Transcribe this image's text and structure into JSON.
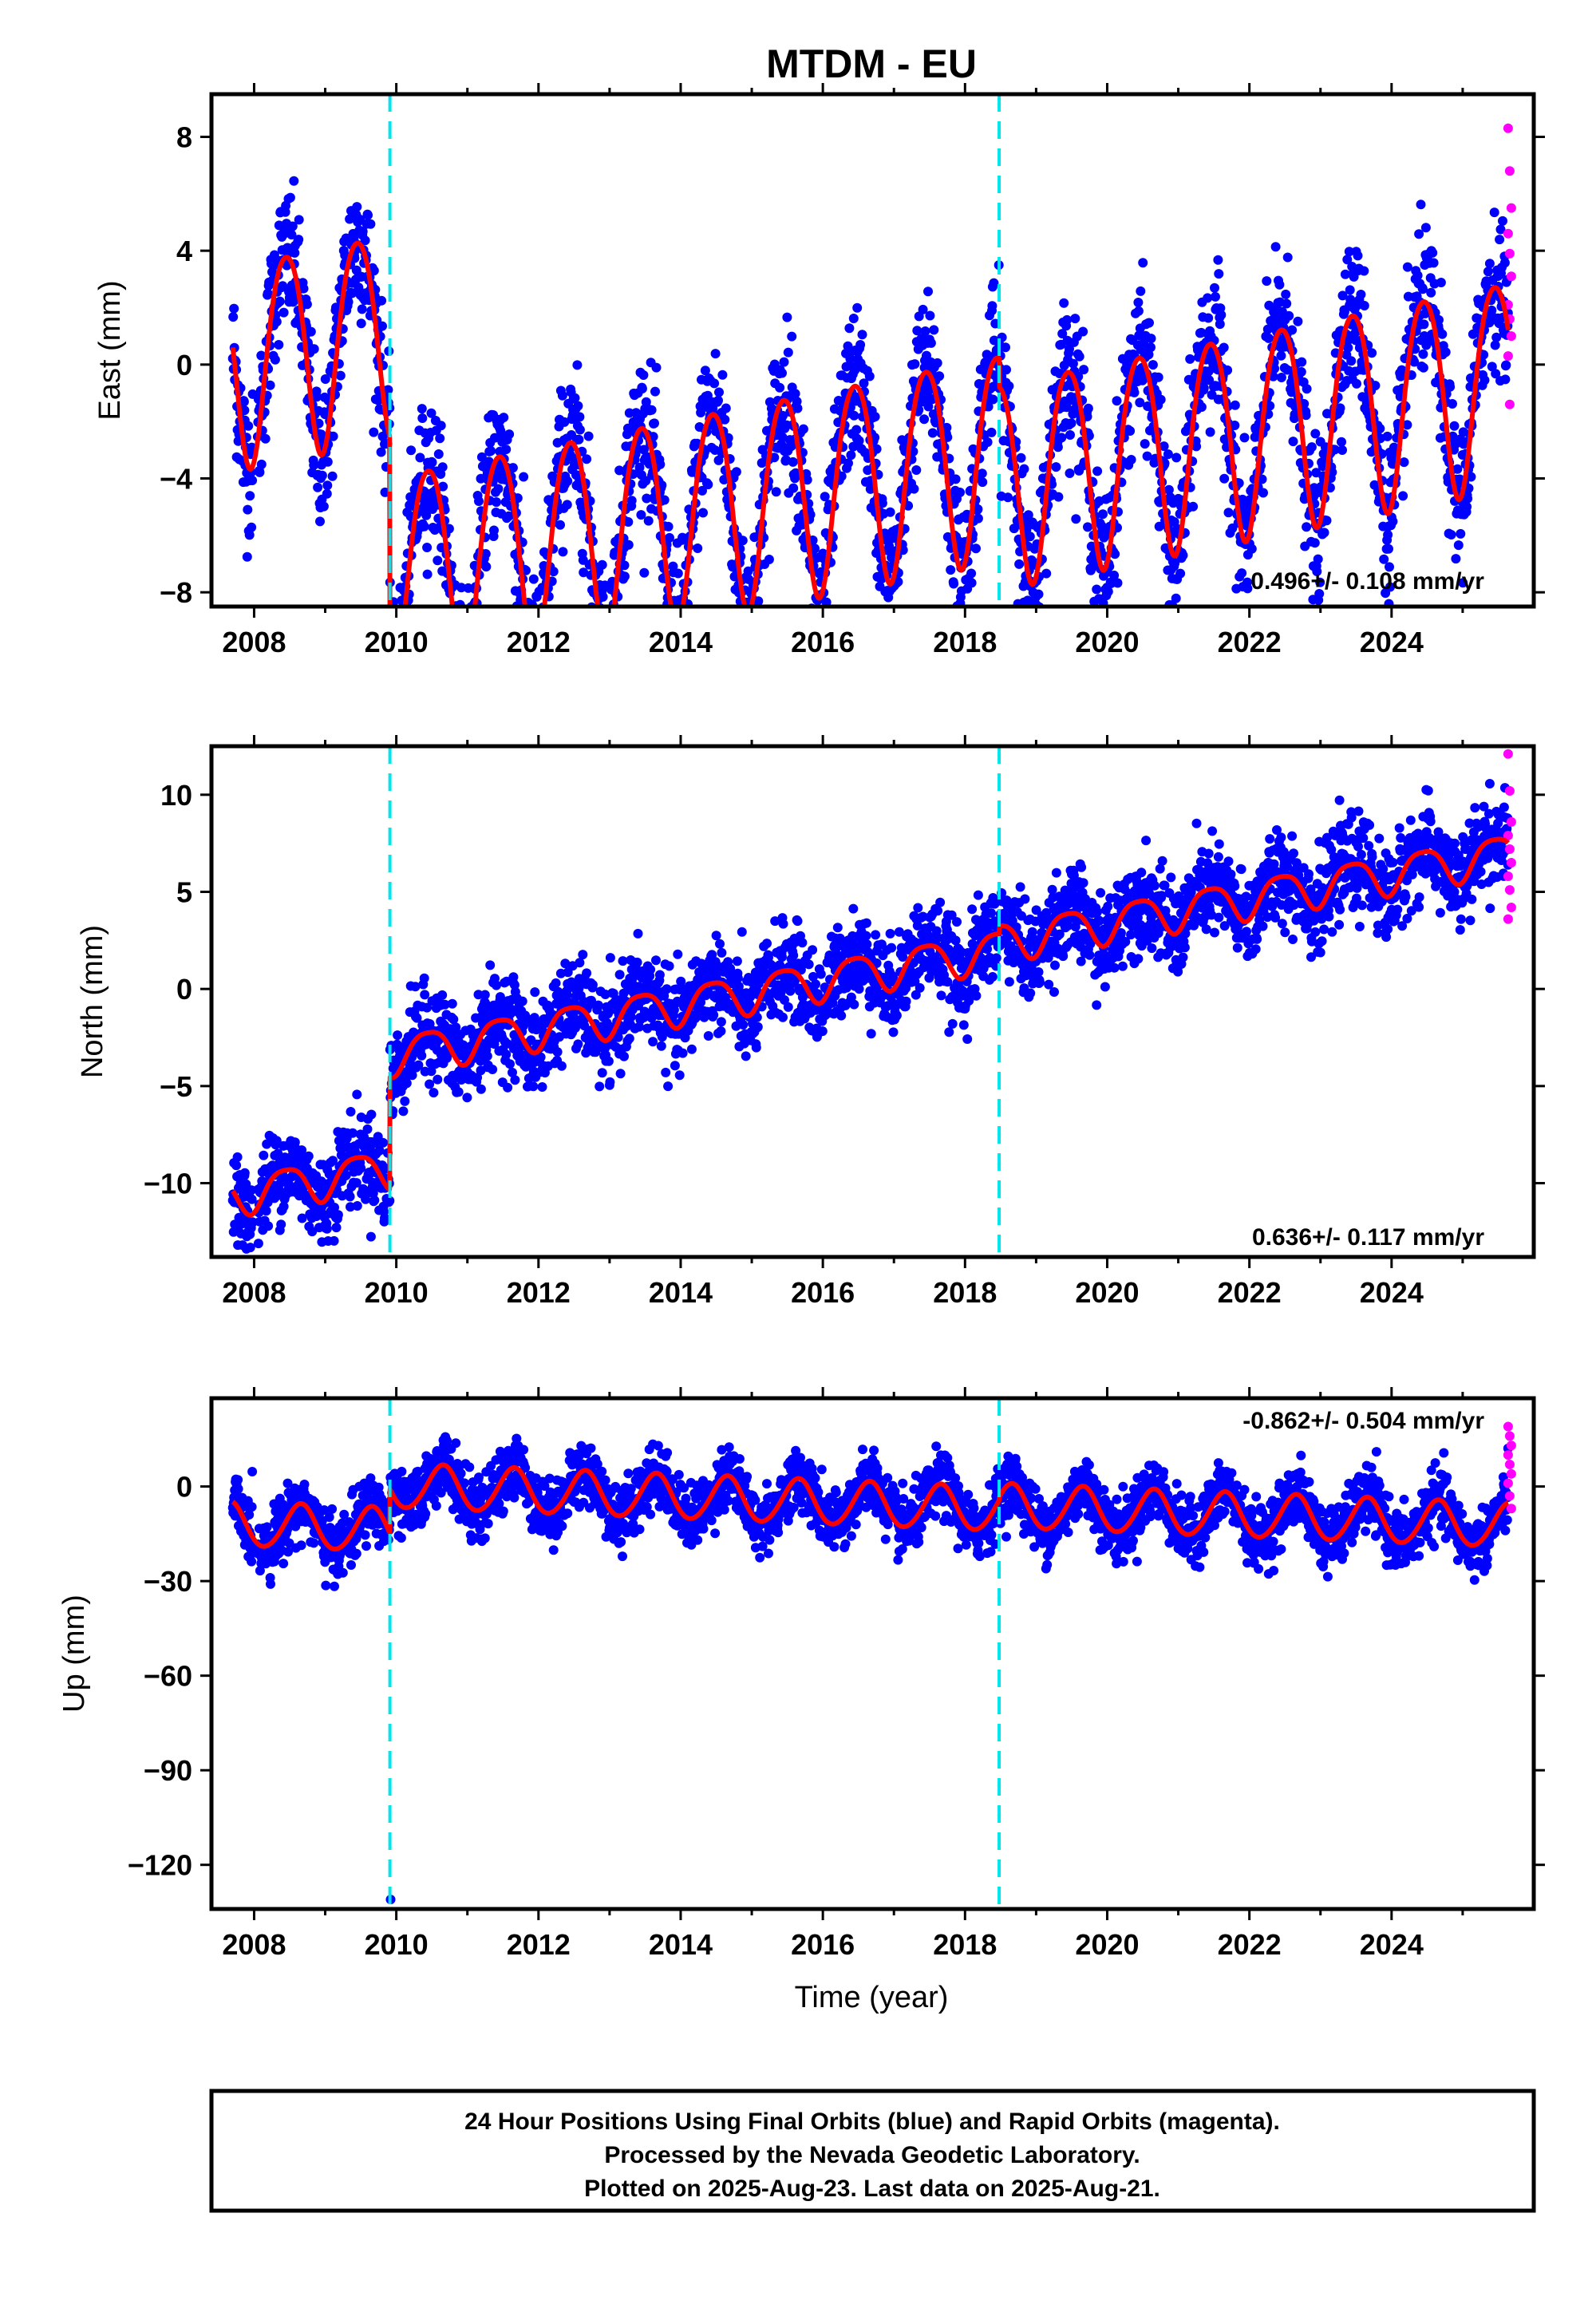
{
  "chart_data": {
    "title": "MTDM - EU",
    "type": "scatter",
    "xlabel": "Time (year)",
    "xlim": [
      2007.4,
      2026.0
    ],
    "x_ticks": [
      "2008",
      "2010",
      "2012",
      "2014",
      "2016",
      "2018",
      "2020",
      "2022",
      "2024"
    ],
    "x_tick_values": [
      2008,
      2010,
      2012,
      2014,
      2016,
      2018,
      2020,
      2022,
      2024
    ],
    "data_range": [
      2007.7,
      2025.64
    ],
    "events": [
      2009.91,
      2018.48
    ],
    "event_style": "cyan dashed vertical lines",
    "colors": {
      "final": "#0000ff",
      "rapid": "#ff00ff",
      "model": "#ff0000",
      "event": "#00e5ee"
    },
    "legend_text": [
      "24 Hour Positions Using Final Orbits (blue) and Rapid Orbits (magenta).",
      "Processed by the Nevada Geodetic Laboratory.",
      "Plotted on 2025-Aug-23. Last data on 2025-Aug-21."
    ],
    "panels": [
      {
        "id": "east",
        "ylabel": "East (mm)",
        "ylim": [
          -8.5,
          9.5
        ],
        "y_ticks": [
          "8",
          "4",
          "0",
          "−4",
          "−8"
        ],
        "y_tick_values": [
          8,
          4,
          0,
          -4,
          -8
        ],
        "rate": "0.496+/- 0.108 mm/yr",
        "model": {
          "t0": 2007.7,
          "base": 0.2,
          "trend": 0.496,
          "annual_amp": 3.6,
          "annual_phase_peak": 0.45,
          "semi_amp": 0.4,
          "offsets": [
            {
              "t": 2009.91,
              "dy": -8.5
            },
            {
              "t": 2018.48,
              "dy": -1.0
            }
          ],
          "noise": 1.25
        },
        "rapid_points": [
          8.3,
          6.8,
          5.5,
          4.6,
          3.9,
          3.1,
          2.1,
          1.6,
          1.0,
          0.3,
          -1.4
        ]
      },
      {
        "id": "north",
        "ylabel": "North (mm)",
        "ylim": [
          -13.8,
          12.5
        ],
        "y_ticks": [
          "10",
          "5",
          "0",
          "−5",
          "−10"
        ],
        "y_tick_values": [
          10,
          5,
          0,
          -5,
          -10
        ],
        "rate": "0.636+/- 0.117 mm/yr",
        "model": {
          "t0": 2007.7,
          "base": -10.6,
          "trend": 0.636,
          "annual_amp": 1.0,
          "annual_phase_peak": 0.45,
          "semi_amp": 0.2,
          "offsets": [
            {
              "t": 2009.91,
              "dy": 5.8
            },
            {
              "t": 2018.48,
              "dy": 0.4
            }
          ],
          "noise": 1.15
        },
        "rapid_points": [
          12.1,
          10.2,
          8.6,
          7.9,
          7.2,
          6.5,
          5.8,
          5.1,
          4.2,
          3.6
        ]
      },
      {
        "id": "up",
        "ylabel": "Up (mm)",
        "ylim": [
          -134,
          28
        ],
        "y_ticks": [
          "0",
          "−30",
          "−60",
          "−90",
          "−120"
        ],
        "y_tick_values": [
          0,
          -30,
          -60,
          -90,
          -120
        ],
        "rate": "-0.862+/- 0.504 mm/yr",
        "model": {
          "t0": 2007.7,
          "base": -12.0,
          "trend": -0.862,
          "annual_amp": 7.0,
          "annual_phase_peak": 0.65,
          "semi_amp": 0.5,
          "offsets": [
            {
              "t": 2009.91,
              "dy": 14.0
            },
            {
              "t": 2018.48,
              "dy": 1.0
            }
          ],
          "noise": 4.8
        },
        "rapid_points": [
          19,
          16,
          13,
          10,
          7,
          4,
          1,
          -3,
          -7
        ],
        "outliers": [
          {
            "x": 2009.92,
            "y": -131
          }
        ]
      }
    ]
  }
}
